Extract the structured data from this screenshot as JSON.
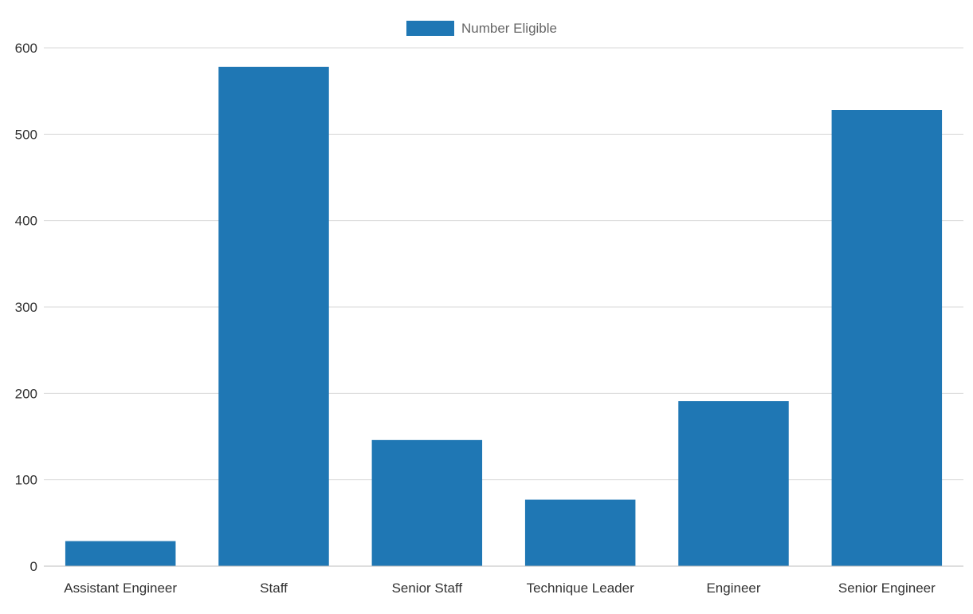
{
  "chart_data": {
    "type": "bar",
    "categories": [
      "Assistant Engineer",
      "Staff",
      "Senior Staff",
      "Technique Leader",
      "Engineer",
      "Senior Engineer"
    ],
    "series": [
      {
        "name": "Number Eligible",
        "values": [
          29,
          578,
          146,
          77,
          191,
          528
        ],
        "color": "#1f77b4"
      }
    ],
    "ylim": [
      0,
      600
    ],
    "yticks": [
      0,
      100,
      200,
      300,
      400,
      500,
      600
    ],
    "ytick_labels": [
      "0",
      "100",
      "200",
      "300",
      "400",
      "500",
      "600"
    ],
    "grid": true,
    "legend_position": "top-center",
    "title": "",
    "xlabel": "",
    "ylabel": ""
  }
}
